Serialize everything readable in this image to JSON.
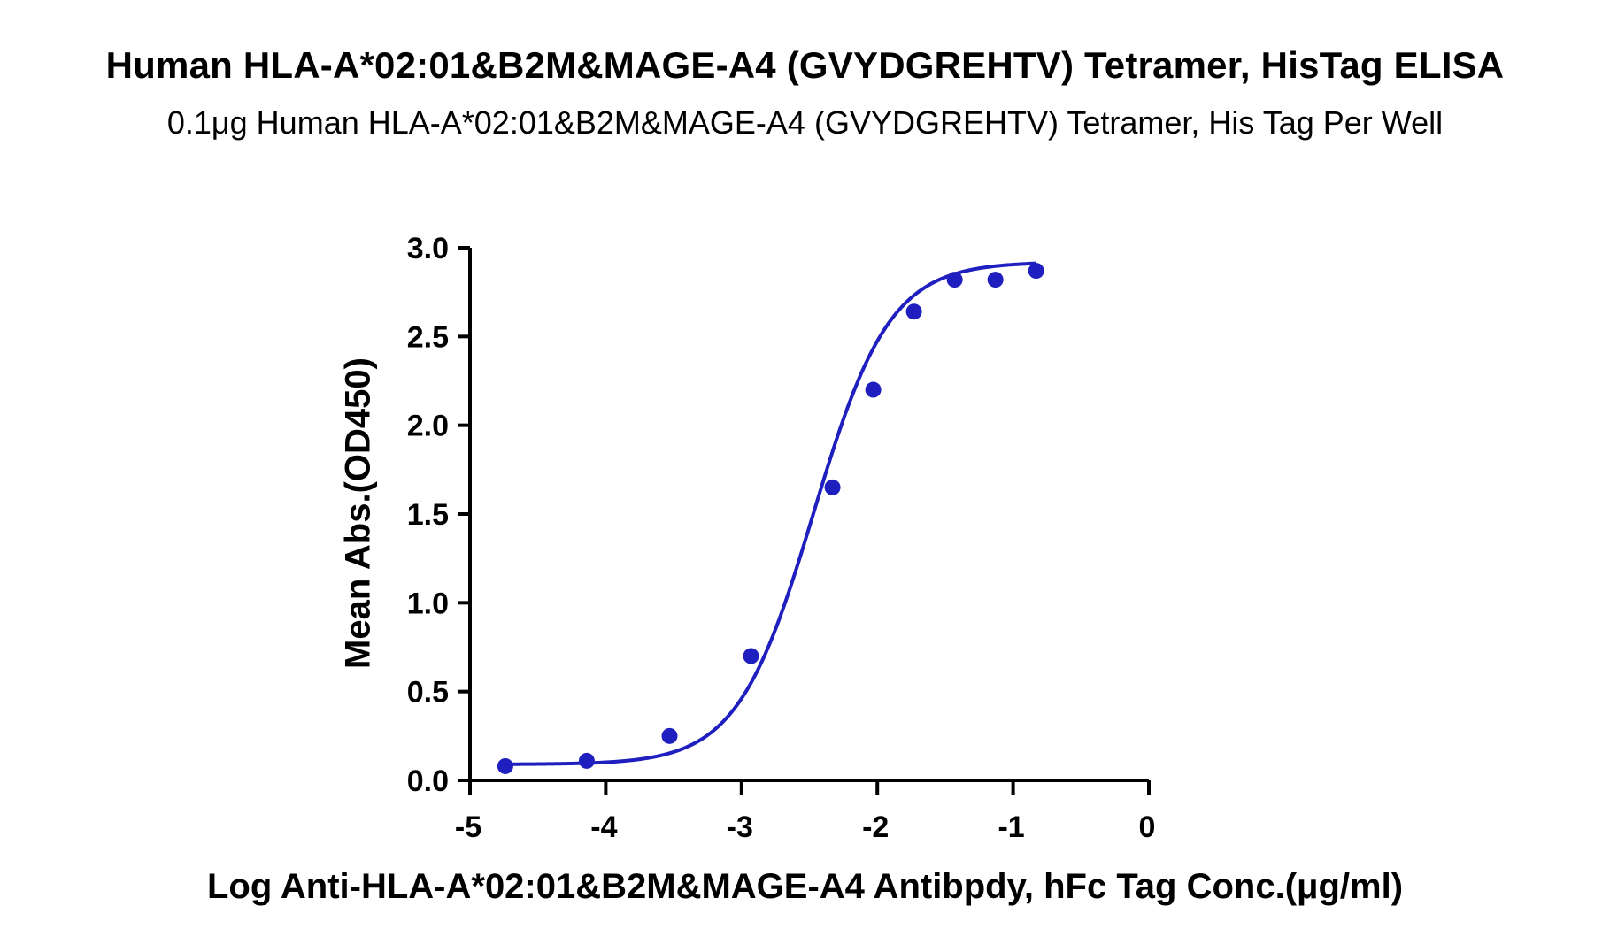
{
  "chart_data": {
    "type": "scatter",
    "title": "Human HLA-A*02:01&B2M&MAGE-A4 (GVYDGREHTV) Tetramer, HisTag ELISA",
    "subtitle": "0.1μg Human HLA-A*02:01&B2M&MAGE-A4 (GVYDGREHTV) Tetramer, His Tag Per Well",
    "xlabel": "Log Anti-HLA-A*02:01&B2M&MAGE-A4 Antibpdy, hFc Tag Conc.(μg/ml)",
    "ylabel": "Mean Abs.(OD450)",
    "xlim": [
      -5,
      0
    ],
    "ylim": [
      0,
      3.0
    ],
    "x_ticks": [
      -5,
      -4,
      -3,
      -2,
      -1,
      0
    ],
    "x_tick_labels": [
      "-5",
      "-4",
      "-3",
      "-2",
      "-1",
      "0"
    ],
    "y_ticks": [
      0,
      0.5,
      1.0,
      1.5,
      2.0,
      2.5,
      3.0
    ],
    "y_tick_labels": [
      "0.0",
      "0.5",
      "1.0",
      "1.5",
      "2.0",
      "2.5",
      "3.0"
    ],
    "grid": false,
    "color": "#1f1fbf",
    "series": [
      {
        "x": [
          -4.74,
          -4.14,
          -3.53,
          -2.93,
          -2.33,
          -2.03,
          -1.73,
          -1.43,
          -1.13,
          -0.83
        ],
        "y": [
          0.08,
          0.11,
          0.25,
          0.7,
          1.65,
          2.2,
          2.64,
          2.82,
          2.82,
          2.87
        ]
      }
    ],
    "fit": {
      "model": "4PL",
      "bottom": 0.09,
      "top": 2.92,
      "log_ec50": -2.47,
      "hill": 1.55,
      "x_range": [
        -4.74,
        -0.83
      ]
    }
  }
}
